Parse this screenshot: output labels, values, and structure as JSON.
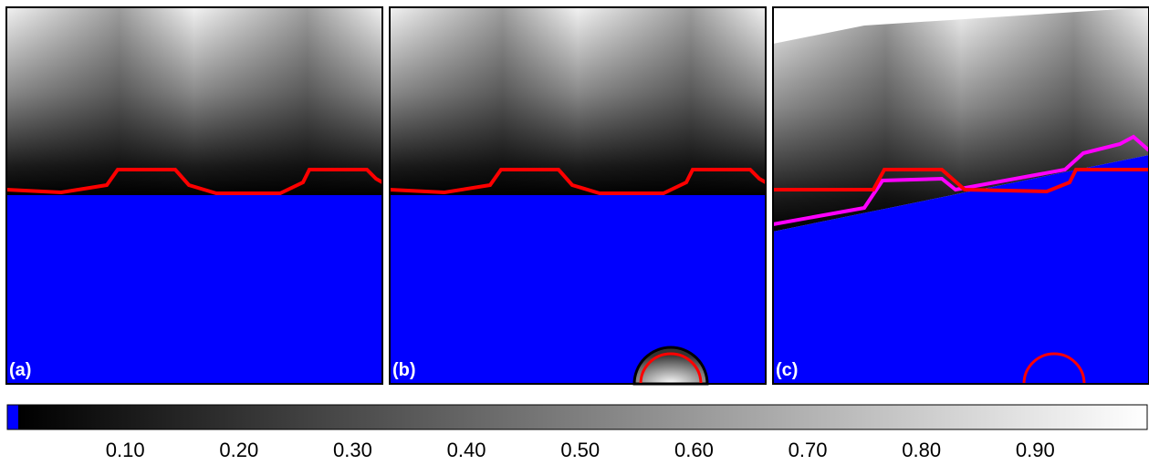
{
  "panels": [
    {
      "label": "(a)"
    },
    {
      "label": "(b)"
    },
    {
      "label": "(c)"
    }
  ],
  "colorbar": {
    "range": [
      0,
      1
    ],
    "ticks": [
      {
        "value": 0.1,
        "label": "0.10"
      },
      {
        "value": 0.2,
        "label": "0.20"
      },
      {
        "value": 0.3,
        "label": "0.30"
      },
      {
        "value": 0.4,
        "label": "0.40"
      },
      {
        "value": 0.5,
        "label": "0.50"
      },
      {
        "value": 0.6,
        "label": "0.60"
      },
      {
        "value": 0.7,
        "label": "0.70"
      },
      {
        "value": 0.8,
        "label": "0.80"
      },
      {
        "value": 0.9,
        "label": "0.90"
      }
    ]
  }
}
